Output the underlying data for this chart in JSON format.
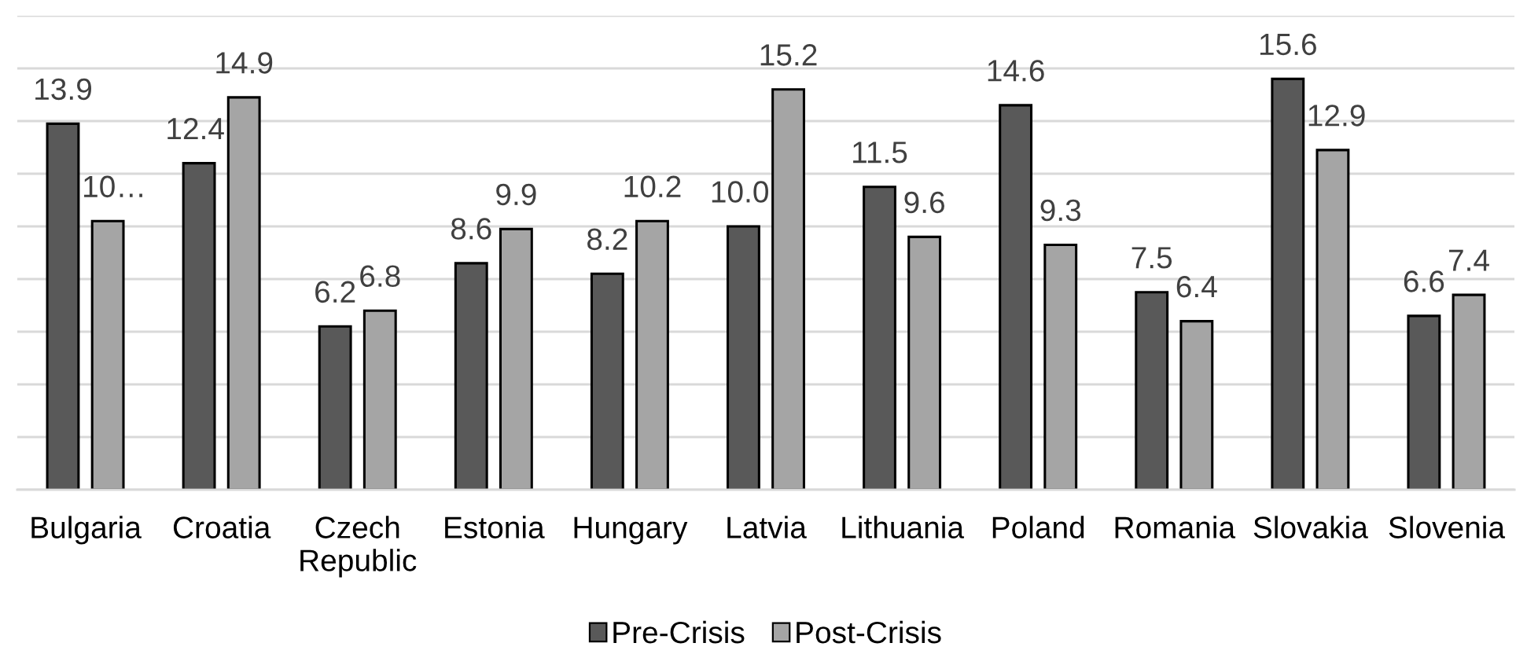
{
  "chart_data": {
    "type": "bar",
    "categories": [
      "Bulgaria",
      "Croatia",
      "Czech Republic",
      "Estonia",
      "Hungary",
      "Latvia",
      "Lithuania",
      "Poland",
      "Romania",
      "Slovakia",
      "Slovenia"
    ],
    "series": [
      {
        "name": "Pre-Crisis",
        "color": "#595959",
        "values": [
          13.9,
          12.4,
          6.2,
          8.6,
          8.2,
          10.0,
          11.5,
          14.6,
          7.5,
          15.6,
          6.6
        ],
        "value_labels": [
          "13.9",
          "12.4",
          "6.2",
          "8.6",
          "8.2",
          "10.0",
          "11.5",
          "14.6",
          "7.5",
          "15.6",
          "6.6"
        ]
      },
      {
        "name": "Post-Crisis",
        "color": "#a5a5a5",
        "values": [
          10.2,
          14.9,
          6.8,
          9.9,
          10.2,
          15.2,
          9.6,
          9.3,
          6.4,
          12.9,
          7.4
        ],
        "value_labels": [
          "10…",
          "14.9",
          "6.8",
          "9.9",
          "10.2",
          "15.2",
          "9.6",
          "9.3",
          "6.4",
          "12.9",
          "7.4"
        ]
      }
    ],
    "ylim": [
      0,
      18
    ],
    "yticks": [
      {
        "value": 0,
        "label": null
      },
      {
        "value": 2,
        "label": null
      },
      {
        "value": 4,
        "label": null
      },
      {
        "value": 6,
        "label": null
      },
      {
        "value": 8,
        "label": null
      },
      {
        "value": 10,
        "label": null
      },
      {
        "value": 12,
        "label": null
      },
      {
        "value": 14,
        "label": null
      },
      {
        "value": 16,
        "label": null
      },
      {
        "value": 18,
        "label": null
      }
    ],
    "tick_labels": "x",
    "grid": "y",
    "legend": "bottom"
  }
}
